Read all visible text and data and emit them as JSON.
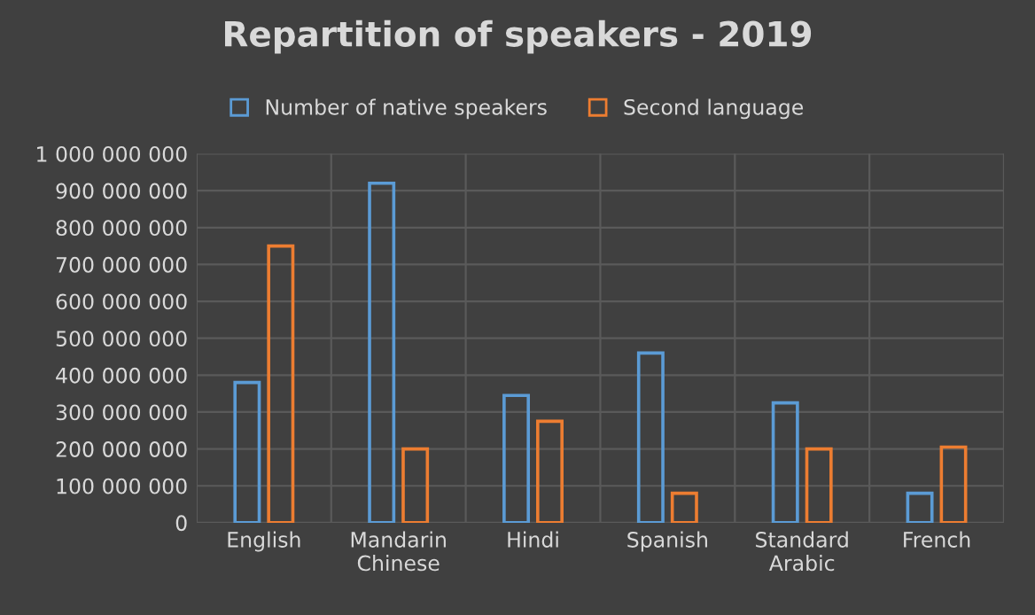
{
  "chart_data": {
    "type": "bar",
    "title": "Repartition of speakers - 2019",
    "categories": [
      "English",
      "Mandarin\nChinese",
      "Hindi",
      "Spanish",
      "Standard\nArabic",
      "French"
    ],
    "series": [
      {
        "name": "Number of native speakers",
        "color": "#5b9bd5",
        "values": [
          380000000,
          920000000,
          345000000,
          460000000,
          325000000,
          80000000
        ]
      },
      {
        "name": "Second language",
        "color": "#ed7d31",
        "values": [
          750000000,
          200000000,
          275000000,
          80000000,
          200000000,
          205000000
        ]
      }
    ],
    "ylim": [
      0,
      1000000000
    ],
    "yticks": [
      {
        "value": 0,
        "label": "0"
      },
      {
        "value": 100000000,
        "label": "100 000 000"
      },
      {
        "value": 200000000,
        "label": "200 000 000"
      },
      {
        "value": 300000000,
        "label": "300 000 000"
      },
      {
        "value": 400000000,
        "label": "400 000 000"
      },
      {
        "value": 500000000,
        "label": "500 000 000"
      },
      {
        "value": 600000000,
        "label": "600 000 000"
      },
      {
        "value": 700000000,
        "label": "700 000 000"
      },
      {
        "value": 800000000,
        "label": "800 000 000"
      },
      {
        "value": 900000000,
        "label": "900 000 000"
      },
      {
        "value": 1000000000,
        "label": "1 000 000 000"
      }
    ],
    "grid": true,
    "legend": "top"
  }
}
